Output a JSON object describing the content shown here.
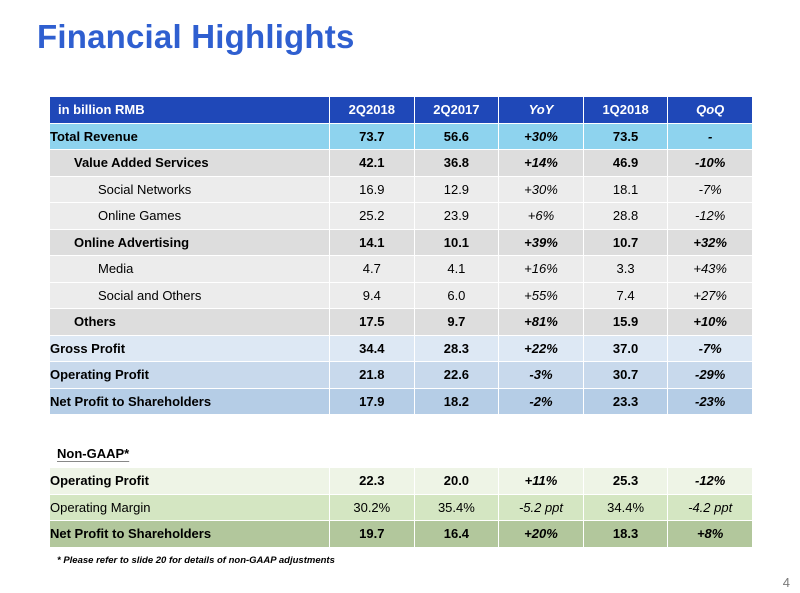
{
  "title": "Financial Highlights",
  "table": {
    "headers": [
      "in billion RMB",
      "2Q2018",
      "2Q2017",
      "YoY",
      "1Q2018",
      "QoQ"
    ],
    "rows": [
      {
        "label": "Total Revenue",
        "values": [
          "73.7",
          "56.6",
          "+30%",
          "73.5",
          "-"
        ]
      },
      {
        "label": "Value Added Services",
        "values": [
          "42.1",
          "36.8",
          "+14%",
          "46.9",
          "-10%"
        ]
      },
      {
        "label": "Social Networks",
        "values": [
          "16.9",
          "12.9",
          "+30%",
          "18.1",
          "-7%"
        ]
      },
      {
        "label": "Online Games",
        "values": [
          "25.2",
          "23.9",
          "+6%",
          "28.8",
          "-12%"
        ]
      },
      {
        "label": "Online Advertising",
        "values": [
          "14.1",
          "10.1",
          "+39%",
          "10.7",
          "+32%"
        ]
      },
      {
        "label": "Media",
        "values": [
          "4.7",
          "4.1",
          "+16%",
          "3.3",
          "+43%"
        ]
      },
      {
        "label": "Social and Others",
        "values": [
          "9.4",
          "6.0",
          "+55%",
          "7.4",
          "+27%"
        ]
      },
      {
        "label": "Others",
        "values": [
          "17.5",
          "9.7",
          "+81%",
          "15.9",
          "+10%"
        ]
      },
      {
        "label": "Gross Profit",
        "values": [
          "34.4",
          "28.3",
          "+22%",
          "37.0",
          "-7%"
        ]
      },
      {
        "label": "Operating Profit",
        "values": [
          "21.8",
          "22.6",
          "-3%",
          "30.7",
          "-29%"
        ]
      },
      {
        "label": "Net Profit to Shareholders",
        "values": [
          "17.9",
          "18.2",
          "-2%",
          "23.3",
          "-23%"
        ]
      }
    ]
  },
  "non_gaap": {
    "title": "Non-GAAP*",
    "rows": [
      {
        "label": "Operating Profit",
        "values": [
          "22.3",
          "20.0",
          "+11%",
          "25.3",
          "-12%"
        ]
      },
      {
        "label": "Operating Margin",
        "values": [
          "30.2%",
          "35.4%",
          "-5.2 ppt",
          "34.4%",
          "-4.2 ppt"
        ]
      },
      {
        "label": "Net Profit to Shareholders",
        "values": [
          "19.7",
          "16.4",
          "+20%",
          "18.3",
          "+8%"
        ]
      }
    ]
  },
  "footnote": "* Please refer to slide 20 for details of non-GAAP adjustments",
  "page_number": "4",
  "colors": {
    "title": "#2f5fd0",
    "header_bg": "#1f48b8",
    "total_row": "#8ed3ee"
  }
}
